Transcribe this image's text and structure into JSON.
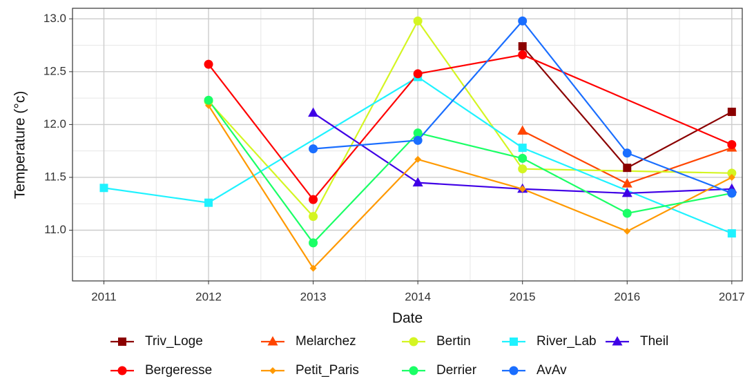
{
  "chart_data": {
    "type": "line",
    "x_label": "Date",
    "y_label": "Temperature (°c)",
    "xlim": [
      2010.7,
      2017.1
    ],
    "xticks": [
      2011,
      2012,
      2013,
      2014,
      2015,
      2016,
      2017
    ],
    "ylim": [
      10.52,
      13.1
    ],
    "yticks": [
      {
        "value": 11,
        "label": "11.0"
      },
      11.5,
      {
        "value": 12,
        "label": "12.0"
      },
      12.5,
      {
        "value": 13,
        "label": "13.0"
      }
    ],
    "grid": true,
    "minor_grid": true,
    "legend_position": "bottom",
    "legend_columns": 5,
    "series": [
      {
        "name": "Triv_Loge",
        "color": "#8b0000",
        "marker": "square",
        "x": [
          2015,
          2016,
          2017
        ],
        "values": [
          12.74,
          11.59,
          12.12
        ]
      },
      {
        "name": "Melarchez",
        "color": "#ff4500",
        "marker": "triangle",
        "x": [
          2015,
          2016,
          2017
        ],
        "values": [
          11.94,
          11.44,
          11.78
        ]
      },
      {
        "name": "Bertin",
        "color": "#d4f522",
        "marker": "circle",
        "x": [
          2012,
          2013,
          2014,
          2015,
          2017
        ],
        "values": [
          12.22,
          11.13,
          12.98,
          11.58,
          11.54
        ]
      },
      {
        "name": "River_Lab",
        "color": "#1ff2ff",
        "marker": "square",
        "x": [
          2011,
          2012,
          2014,
          2015,
          2017
        ],
        "values": [
          11.4,
          11.26,
          12.45,
          11.78,
          10.97
        ]
      },
      {
        "name": "Theil",
        "color": "#3f00e6",
        "marker": "triangle",
        "x": [
          2013,
          2014,
          2015,
          2016,
          2017
        ],
        "values": [
          12.11,
          11.45,
          11.39,
          11.35,
          11.39
        ]
      },
      {
        "name": "Bergeresse",
        "color": "#ff0000",
        "marker": "circle",
        "x": [
          2012,
          2013,
          2014,
          2015,
          2017
        ],
        "values": [
          12.57,
          11.29,
          12.48,
          12.66,
          11.81
        ]
      },
      {
        "name": "Petit_Paris",
        "color": "#ff9900",
        "marker": "diamond",
        "x": [
          2012,
          2013,
          2014,
          2015,
          2016,
          2017
        ],
        "values": [
          12.18,
          10.64,
          11.67,
          11.39,
          10.99,
          11.5
        ]
      },
      {
        "name": "Derrier",
        "color": "#1aff66",
        "marker": "circle",
        "x": [
          2012,
          2013,
          2014,
          2015,
          2016,
          2017
        ],
        "values": [
          12.23,
          10.88,
          11.92,
          11.68,
          11.16,
          11.35
        ]
      },
      {
        "name": "AvAv",
        "color": "#1a6eff",
        "marker": "circle",
        "x": [
          2013,
          2014,
          2015,
          2016,
          2017
        ],
        "values": [
          11.77,
          11.85,
          12.98,
          11.73,
          11.35
        ]
      }
    ]
  }
}
